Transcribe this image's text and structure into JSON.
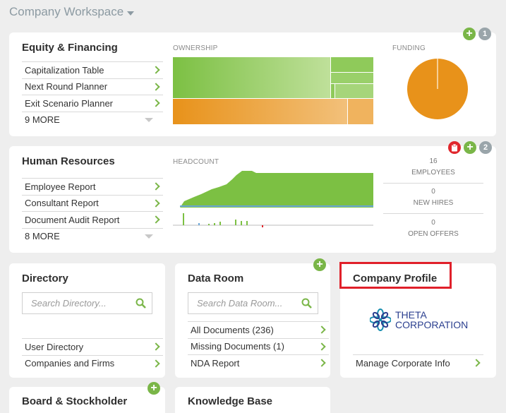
{
  "workspace": {
    "title": "Company Workspace"
  },
  "equity": {
    "title": "Equity & Financing",
    "links": [
      "Capitalization Table",
      "Next Round Planner",
      "Exit Scenario Planner"
    ],
    "more": "9 MORE",
    "ownership_label": "OWNERSHIP",
    "funding_label": "FUNDING",
    "badge": "1"
  },
  "hr": {
    "title": "Human Resources",
    "links": [
      "Employee Report",
      "Consultant Report",
      "Document Audit Report"
    ],
    "more": "8 MORE",
    "headcount_label": "HEADCOUNT",
    "badge": "2",
    "stats": [
      {
        "value": "16",
        "label": "EMPLOYEES"
      },
      {
        "value": "0",
        "label": "NEW HIRES"
      },
      {
        "value": "0",
        "label": "OPEN OFFERS"
      }
    ]
  },
  "directory": {
    "title": "Directory",
    "search_placeholder": "Search Directory...",
    "links": [
      "User Directory",
      "Companies and Firms"
    ]
  },
  "dataroom": {
    "title": "Data Room",
    "search_placeholder": "Search Data Room...",
    "links": [
      "All Documents (236)",
      "Missing Documents (1)",
      "NDA Report"
    ]
  },
  "profile": {
    "title": "Company Profile",
    "logo_line1": "THETA",
    "logo_line2": "CORPORATION",
    "link": "Manage Corporate Info"
  },
  "board": {
    "title": "Board & Stockholder"
  },
  "knowledge": {
    "title": "Knowledge Base"
  },
  "colors": {
    "accent": "#7ab648",
    "orange": "#e8921a",
    "highlight": "#e0202a",
    "badge": "#9aa5aa"
  }
}
